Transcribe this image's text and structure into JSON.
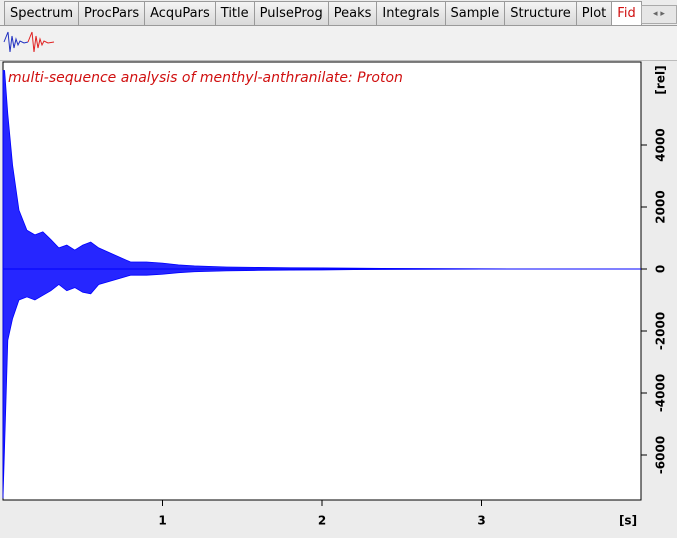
{
  "tabs": [
    "Spectrum",
    "ProcPars",
    "AcquPars",
    "Title",
    "PulseProg",
    "Peaks",
    "Integrals",
    "Sample",
    "Structure",
    "Plot",
    "Fid"
  ],
  "chart_data": {
    "type": "area",
    "title": "multi-sequence analysis of menthyl-anthranilate: Proton",
    "x_label": "[s]",
    "y_label": "[rel]",
    "x": [
      0,
      0.01,
      0.03,
      0.06,
      0.1,
      0.15,
      0.2,
      0.25,
      0.3,
      0.35,
      0.4,
      0.45,
      0.5,
      0.55,
      0.6,
      0.7,
      0.8,
      0.9,
      1.0,
      1.1,
      1.2,
      1.4,
      1.6,
      1.8,
      2.0,
      2.2,
      2.6,
      3.0,
      4.0
    ],
    "series": [
      {
        "color": "#0000ff",
        "values": [
          6400,
          6400,
          5000,
          3350,
          1900,
          1250,
          1100,
          1200,
          950,
          680,
          770,
          610,
          770,
          870,
          680,
          450,
          225,
          225,
          190,
          130,
          100,
          65,
          50,
          40,
          35,
          25,
          15,
          5,
          0
        ]
      },
      {
        "color": "#0000ff",
        "values": [
          -7400,
          -5700,
          -2300,
          -1600,
          -1000,
          -900,
          -1000,
          -850,
          -700,
          -500,
          -700,
          -600,
          -750,
          -800,
          -500,
          -350,
          -200,
          -200,
          -170,
          -120,
          -90,
          -60,
          -45,
          -35,
          -30,
          -20,
          -12,
          -5,
          0
        ]
      }
    ],
    "xlim": [
      0,
      4.0
    ],
    "ylim": [
      -7452,
      6677
    ],
    "xticks": [
      1,
      2,
      3
    ],
    "yticks": [
      -6000,
      -4000,
      -2000,
      0,
      2000,
      4000
    ]
  }
}
